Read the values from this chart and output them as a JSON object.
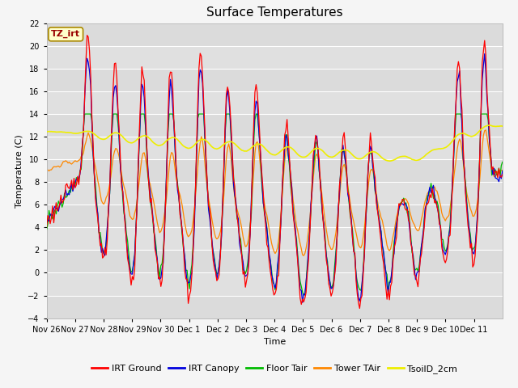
{
  "title": "Surface Temperatures",
  "ylabel": "Temperature (C)",
  "xlabel": "Time",
  "ylim": [
    -4,
    22
  ],
  "yticks": [
    -4,
    -2,
    0,
    2,
    4,
    6,
    8,
    10,
    12,
    14,
    16,
    18,
    20,
    22
  ],
  "annotation": "TZ_irt",
  "series_colors": {
    "IRT Ground": "#ff0000",
    "IRT Canopy": "#0000dd",
    "Floor Tair": "#00bb00",
    "Tower TAir": "#ff8800",
    "TsoilD_2cm": "#eeee00"
  },
  "background_color": "#e8e8e8",
  "plot_bg_color": "#e0e0e0",
  "grid_color": "#ffffff",
  "title_fontsize": 11,
  "axis_fontsize": 8,
  "tick_fontsize": 7,
  "legend_fontsize": 8,
  "xtick_labels": [
    "Nov 26",
    "Nov 27",
    "Nov 28",
    "Nov 29",
    "Nov 30",
    "Dec 1",
    "Dec 2",
    "Dec 3",
    "Dec 4",
    "Dec 5",
    "Dec 6",
    "Dec 7",
    "Dec 8",
    "Dec 9",
    "Dec 10",
    "Dec 11"
  ]
}
